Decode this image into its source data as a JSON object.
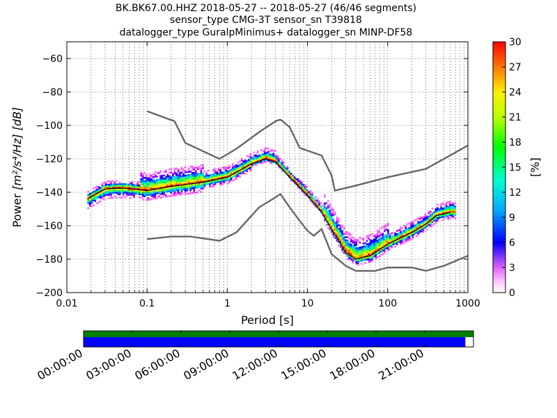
{
  "titles": [
    "BK.BK67.00.HHZ   2018-05-27 -- 2018-05-27  (46/46 segments)",
    "sensor_type CMG-3T sensor_sn T39818",
    "datalogger_type GuralpMinimus+ datalogger_sn MINP-DF58"
  ],
  "colorbar": {
    "label": "[%]",
    "ticks": [
      "0",
      "3",
      "6",
      "9",
      "12",
      "15",
      "18",
      "21",
      "24",
      "27",
      "30"
    ],
    "range": [
      0,
      30
    ]
  },
  "chart_data": [
    {
      "type": "heatmap",
      "xlabel": "Period [s]",
      "ylabel": "Power",
      "ylabel_unit": "[m²/s⁴/Hz] [dB]",
      "xscale": "log",
      "xlim": [
        0.01,
        1000
      ],
      "ylim": [
        -200,
        -50
      ],
      "xticks": [
        "0.01",
        "0.1",
        "1",
        "10",
        "100",
        "1000"
      ],
      "yticks": [
        "−200",
        "−180",
        "−160",
        "−140",
        "−120",
        "−100",
        "−80",
        "−60"
      ],
      "grid": "dotted",
      "series": [
        {
          "name": "",
          "color": "#666666",
          "x": [
            0.1,
            0.22,
            0.3,
            0.8,
            1.3,
            2.5,
            4,
            4.6,
            6,
            8,
            15,
            20,
            22,
            40,
            100,
            300,
            1000
          ],
          "y": [
            -91.5,
            -97.5,
            -110.5,
            -120,
            -114,
            -104,
            -97.5,
            -96.5,
            -101,
            -113.5,
            -118,
            -130,
            -139,
            -136,
            -131,
            -126,
            -112
          ]
        },
        {
          "name": "",
          "color": "#666666",
          "x": [
            0.1,
            0.2,
            0.35,
            0.8,
            1.3,
            2.5,
            4,
            4.6,
            6,
            8,
            10,
            12,
            15,
            20,
            30,
            40,
            70,
            100,
            200,
            300,
            500,
            1000
          ],
          "y": [
            -168,
            -166.5,
            -166.5,
            -169,
            -164,
            -149,
            -143,
            -141,
            -149,
            -157,
            -163,
            -166,
            -162,
            -177,
            -184,
            -187,
            -187,
            -185,
            -185,
            -187,
            -184,
            -178
          ]
        },
        {
          "name": "",
          "color": "#000000",
          "x": [
            0.018,
            0.03,
            0.05,
            0.1,
            0.2,
            0.5,
            1,
            2,
            3,
            4,
            6,
            10,
            15,
            20,
            30,
            40,
            60,
            100,
            200,
            300,
            400,
            600
          ],
          "y": [
            -144,
            -138,
            -137.5,
            -139,
            -136.5,
            -134,
            -131,
            -123,
            -120,
            -122,
            -131,
            -142,
            -152,
            -162,
            -176,
            -180,
            -178,
            -171,
            -164,
            -159,
            -154,
            -152
          ]
        }
      ]
    },
    {
      "type": "bar",
      "xticks": [
        "00:00:00",
        "03:00:00",
        "06:00:00",
        "09:00:00",
        "12:00:00",
        "15:00:00",
        "18:00:00",
        "21:00:00"
      ],
      "xlim": [
        0,
        24
      ],
      "series": [
        {
          "name": "",
          "color": "#008000",
          "range": [
            0,
            24
          ]
        },
        {
          "name": "",
          "color": "#0000ff",
          "range": [
            0,
            23.5
          ]
        }
      ]
    }
  ]
}
